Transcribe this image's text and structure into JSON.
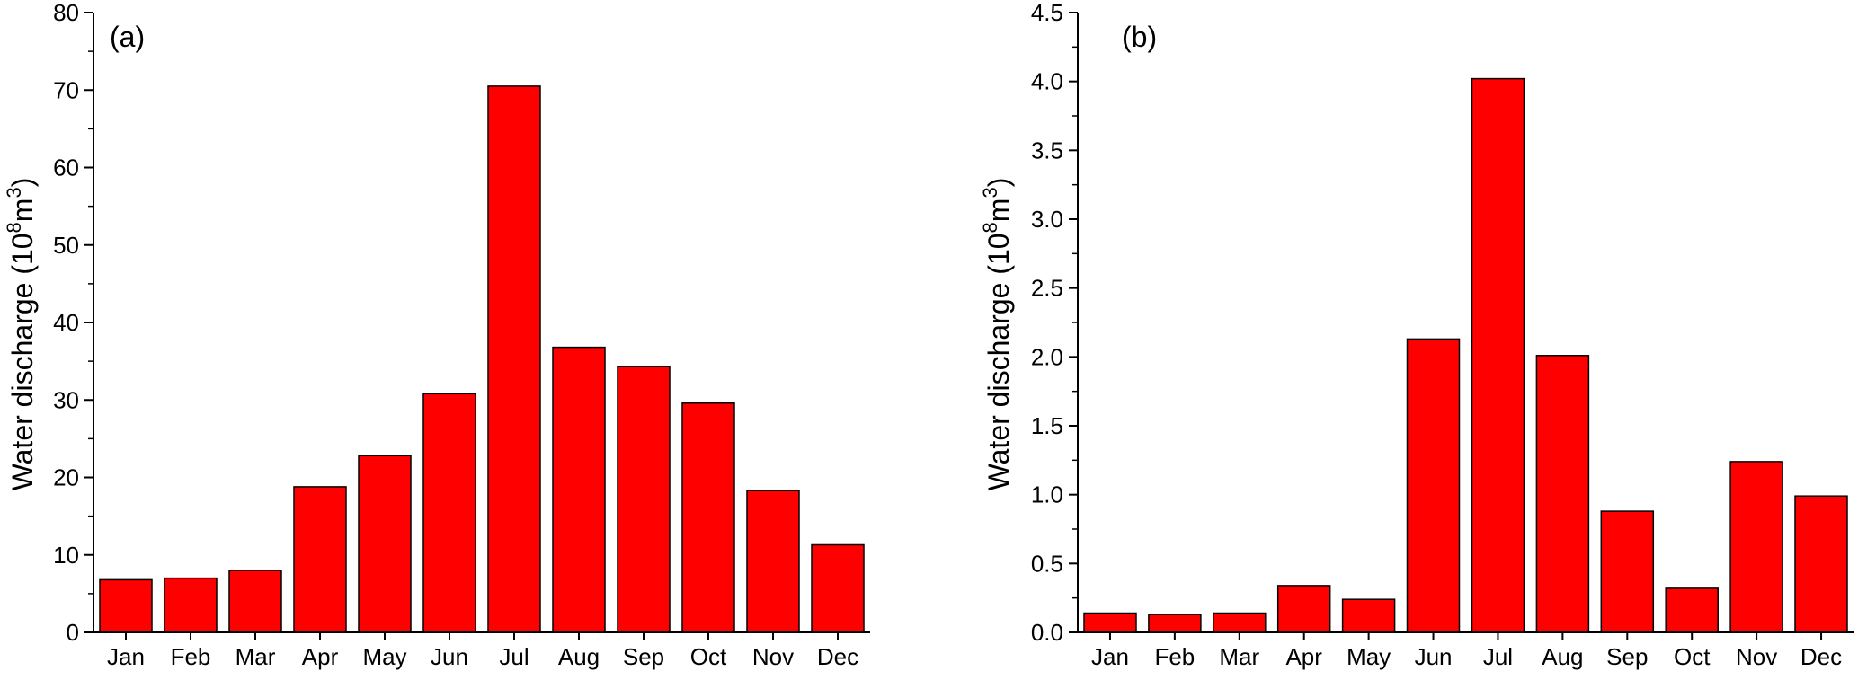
{
  "chart_data": [
    {
      "type": "bar",
      "panel_label": "(a)",
      "categories": [
        "Jan",
        "Feb",
        "Mar",
        "Apr",
        "May",
        "Jun",
        "Jul",
        "Aug",
        "Sep",
        "Oct",
        "Nov",
        "Dec"
      ],
      "values": [
        6.8,
        7.0,
        8.0,
        18.8,
        22.8,
        30.8,
        70.5,
        36.8,
        34.3,
        29.6,
        18.3,
        11.3
      ],
      "ylabel_main": "Water discharge (10",
      "ylabel_sup1": "8",
      "ylabel_mid": "m",
      "ylabel_sup2": "3",
      "ylabel_end": ")",
      "ylim": [
        0,
        80
      ],
      "yticks": [
        "0",
        "10",
        "20",
        "30",
        "40",
        "50",
        "60",
        "70",
        "80"
      ],
      "ytick_values": [
        0,
        10,
        20,
        30,
        40,
        50,
        60,
        70,
        80
      ],
      "minor_step": 5,
      "bar_color": "#ff0000",
      "grid": false
    },
    {
      "type": "bar",
      "panel_label": "(b)",
      "categories": [
        "Jan",
        "Feb",
        "Mar",
        "Apr",
        "May",
        "Jun",
        "Jul",
        "Aug",
        "Sep",
        "Oct",
        "Nov",
        "Dec"
      ],
      "values": [
        0.14,
        0.13,
        0.14,
        0.34,
        0.24,
        2.13,
        4.02,
        2.01,
        0.88,
        0.32,
        1.24,
        0.99
      ],
      "ylabel_main": "Water discharge (10",
      "ylabel_sup1": "8",
      "ylabel_mid": "m",
      "ylabel_sup2": "3",
      "ylabel_end": ")",
      "ylim": [
        0,
        4.5
      ],
      "yticks": [
        "0.0",
        "0.5",
        "1.0",
        "1.5",
        "2.0",
        "2.5",
        "3.0",
        "3.5",
        "4.0",
        "4.5"
      ],
      "ytick_values": [
        0,
        0.5,
        1.0,
        1.5,
        2.0,
        2.5,
        3.0,
        3.5,
        4.0,
        4.5
      ],
      "minor_step": 0.25,
      "bar_color": "#ff0000",
      "grid": false
    }
  ]
}
